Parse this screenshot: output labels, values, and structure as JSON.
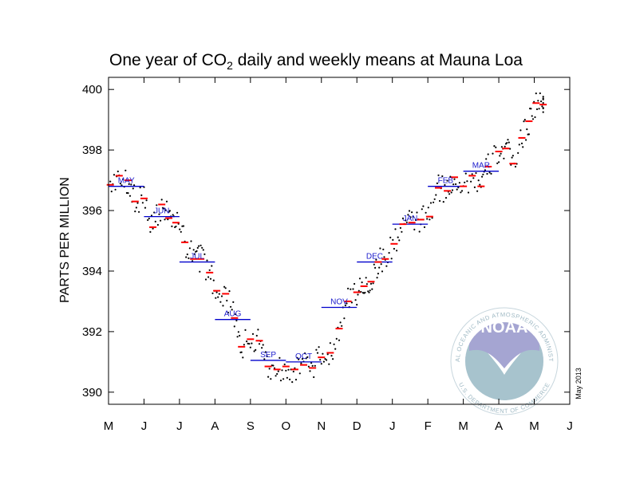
{
  "chart_data": {
    "type": "scatter",
    "title": "One year of CO2 daily and weekly means at Mauna Loa",
    "title_main": "One year of CO",
    "title_sub": "2",
    "title_rest": " daily and weekly means at Mauna Loa",
    "xlabel": "",
    "ylabel": "PARTS PER MILLION",
    "ylim": [
      389.6,
      400.4
    ],
    "xlim": [
      0,
      13
    ],
    "yticks": [
      390,
      392,
      394,
      396,
      398,
      400
    ],
    "xticks": [
      "M",
      "J",
      "J",
      "A",
      "S",
      "O",
      "N",
      "D",
      "J",
      "F",
      "M",
      "A",
      "M",
      "J"
    ],
    "stamp": "May 2013",
    "colors": {
      "daily": "#000000",
      "weekly": "#ff0000",
      "monthly": "#0000cc",
      "month_label": "#1a1acc"
    },
    "monthly_means": [
      {
        "label": "MAY",
        "value": 396.8
      },
      {
        "label": "JUN",
        "value": 395.8
      },
      {
        "label": "JUL",
        "value": 394.3
      },
      {
        "label": "AUG",
        "value": 392.4
      },
      {
        "label": "SEP",
        "value": 391.05
      },
      {
        "label": "OCT",
        "value": 391.0
      },
      {
        "label": "NOV",
        "value": 392.8
      },
      {
        "label": "DEC",
        "value": 394.3
      },
      {
        "label": "JAN",
        "value": 395.55
      },
      {
        "label": "FEB",
        "value": 396.8
      },
      {
        "label": "MAR",
        "value": 397.3
      }
    ],
    "weekly_means": [
      {
        "t": 0.05,
        "v": 396.85
      },
      {
        "t": 0.3,
        "v": 397.15
      },
      {
        "t": 0.55,
        "v": 397.0
      },
      {
        "t": 0.75,
        "v": 396.3
      },
      {
        "t": 1.0,
        "v": 396.4
      },
      {
        "t": 1.25,
        "v": 395.45
      },
      {
        "t": 1.5,
        "v": 396.2
      },
      {
        "t": 1.7,
        "v": 395.75
      },
      {
        "t": 1.9,
        "v": 395.6
      },
      {
        "t": 2.15,
        "v": 394.95
      },
      {
        "t": 2.4,
        "v": 394.4
      },
      {
        "t": 2.6,
        "v": 394.4
      },
      {
        "t": 2.85,
        "v": 393.95
      },
      {
        "t": 3.05,
        "v": 393.35
      },
      {
        "t": 3.3,
        "v": 393.25
      },
      {
        "t": 3.55,
        "v": 392.45
      },
      {
        "t": 3.75,
        "v": 391.5
      },
      {
        "t": 4.0,
        "v": 391.75
      },
      {
        "t": 4.25,
        "v": 391.7
      },
      {
        "t": 4.5,
        "v": 390.85
      },
      {
        "t": 4.75,
        "v": 390.75
      },
      {
        "t": 5.0,
        "v": 390.85
      },
      {
        "t": 5.25,
        "v": 390.75
      },
      {
        "t": 5.5,
        "v": 390.9
      },
      {
        "t": 5.75,
        "v": 390.8
      },
      {
        "t": 6.0,
        "v": 391.15
      },
      {
        "t": 6.25,
        "v": 391.3
      },
      {
        "t": 6.5,
        "v": 392.1
      },
      {
        "t": 6.75,
        "v": 393.0
      },
      {
        "t": 7.0,
        "v": 393.3
      },
      {
        "t": 7.2,
        "v": 393.5
      },
      {
        "t": 7.4,
        "v": 393.65
      },
      {
        "t": 7.6,
        "v": 394.3
      },
      {
        "t": 7.8,
        "v": 394.4
      },
      {
        "t": 8.05,
        "v": 394.9
      },
      {
        "t": 8.3,
        "v": 395.55
      },
      {
        "t": 8.55,
        "v": 395.6
      },
      {
        "t": 8.8,
        "v": 395.7
      },
      {
        "t": 9.05,
        "v": 395.8
      },
      {
        "t": 9.3,
        "v": 396.75
      },
      {
        "t": 9.55,
        "v": 396.65
      },
      {
        "t": 9.75,
        "v": 397.1
      },
      {
        "t": 10.0,
        "v": 396.8
      },
      {
        "t": 10.25,
        "v": 397.15
      },
      {
        "t": 10.5,
        "v": 396.8
      },
      {
        "t": 10.7,
        "v": 397.45
      },
      {
        "t": 11.0,
        "v": 397.95
      },
      {
        "t": 11.2,
        "v": 398.05
      },
      {
        "t": 11.4,
        "v": 397.55
      },
      {
        "t": 11.65,
        "v": 398.4
      },
      {
        "t": 11.85,
        "v": 398.95
      },
      {
        "t": 12.05,
        "v": 399.55
      },
      {
        "t": 12.25,
        "v": 399.5
      }
    ]
  },
  "logo": {
    "word": "NOAA",
    "ring_top": "NATIONAL OCEANIC AND ATMOSPHERIC ADMINISTRATION",
    "ring_bottom": "U.S. DEPARTMENT OF COMMERCE"
  }
}
